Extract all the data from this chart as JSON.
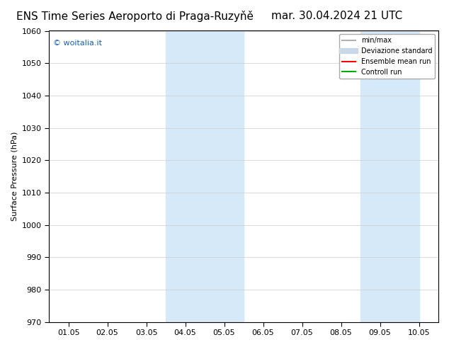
{
  "title_left": "ENS Time Series Aeroporto di Praga-Ruzyňě",
  "title_right": "mar. 30.04.2024 21 UTC",
  "ylabel": "Surface Pressure (hPa)",
  "watermark": "© woitalia.it",
  "ylim": [
    970,
    1060
  ],
  "yticks": [
    970,
    980,
    990,
    1000,
    1010,
    1020,
    1030,
    1040,
    1050,
    1060
  ],
  "xtick_labels": [
    "01.05",
    "02.05",
    "03.05",
    "04.05",
    "05.05",
    "06.05",
    "07.05",
    "08.05",
    "09.05",
    "10.05"
  ],
  "xtick_positions": [
    0,
    1,
    2,
    3,
    4,
    5,
    6,
    7,
    8,
    9
  ],
  "xlim": [
    -0.5,
    9.5
  ],
  "shade_regions": [
    {
      "xmin": 2.5,
      "xmax": 4.5
    },
    {
      "xmin": 7.5,
      "xmax": 9.0
    }
  ],
  "shade_color": "#d6e9f8",
  "background_color": "#ffffff",
  "plot_bg_color": "#ffffff",
  "legend_items": [
    {
      "label": "min/max",
      "color": "#b0b0b0",
      "lw": 1.5,
      "style": "-"
    },
    {
      "label": "Deviazione standard",
      "color": "#c8d8e8",
      "lw": 6,
      "style": "-"
    },
    {
      "label": "Ensemble mean run",
      "color": "#ff0000",
      "lw": 1.5,
      "style": "-"
    },
    {
      "label": "Controll run",
      "color": "#00aa00",
      "lw": 1.5,
      "style": "-"
    }
  ],
  "watermark_color": "#1a5fb4",
  "title_fontsize": 11,
  "tick_fontsize": 8,
  "ylabel_fontsize": 8,
  "figsize": [
    6.34,
    4.9
  ],
  "dpi": 100
}
